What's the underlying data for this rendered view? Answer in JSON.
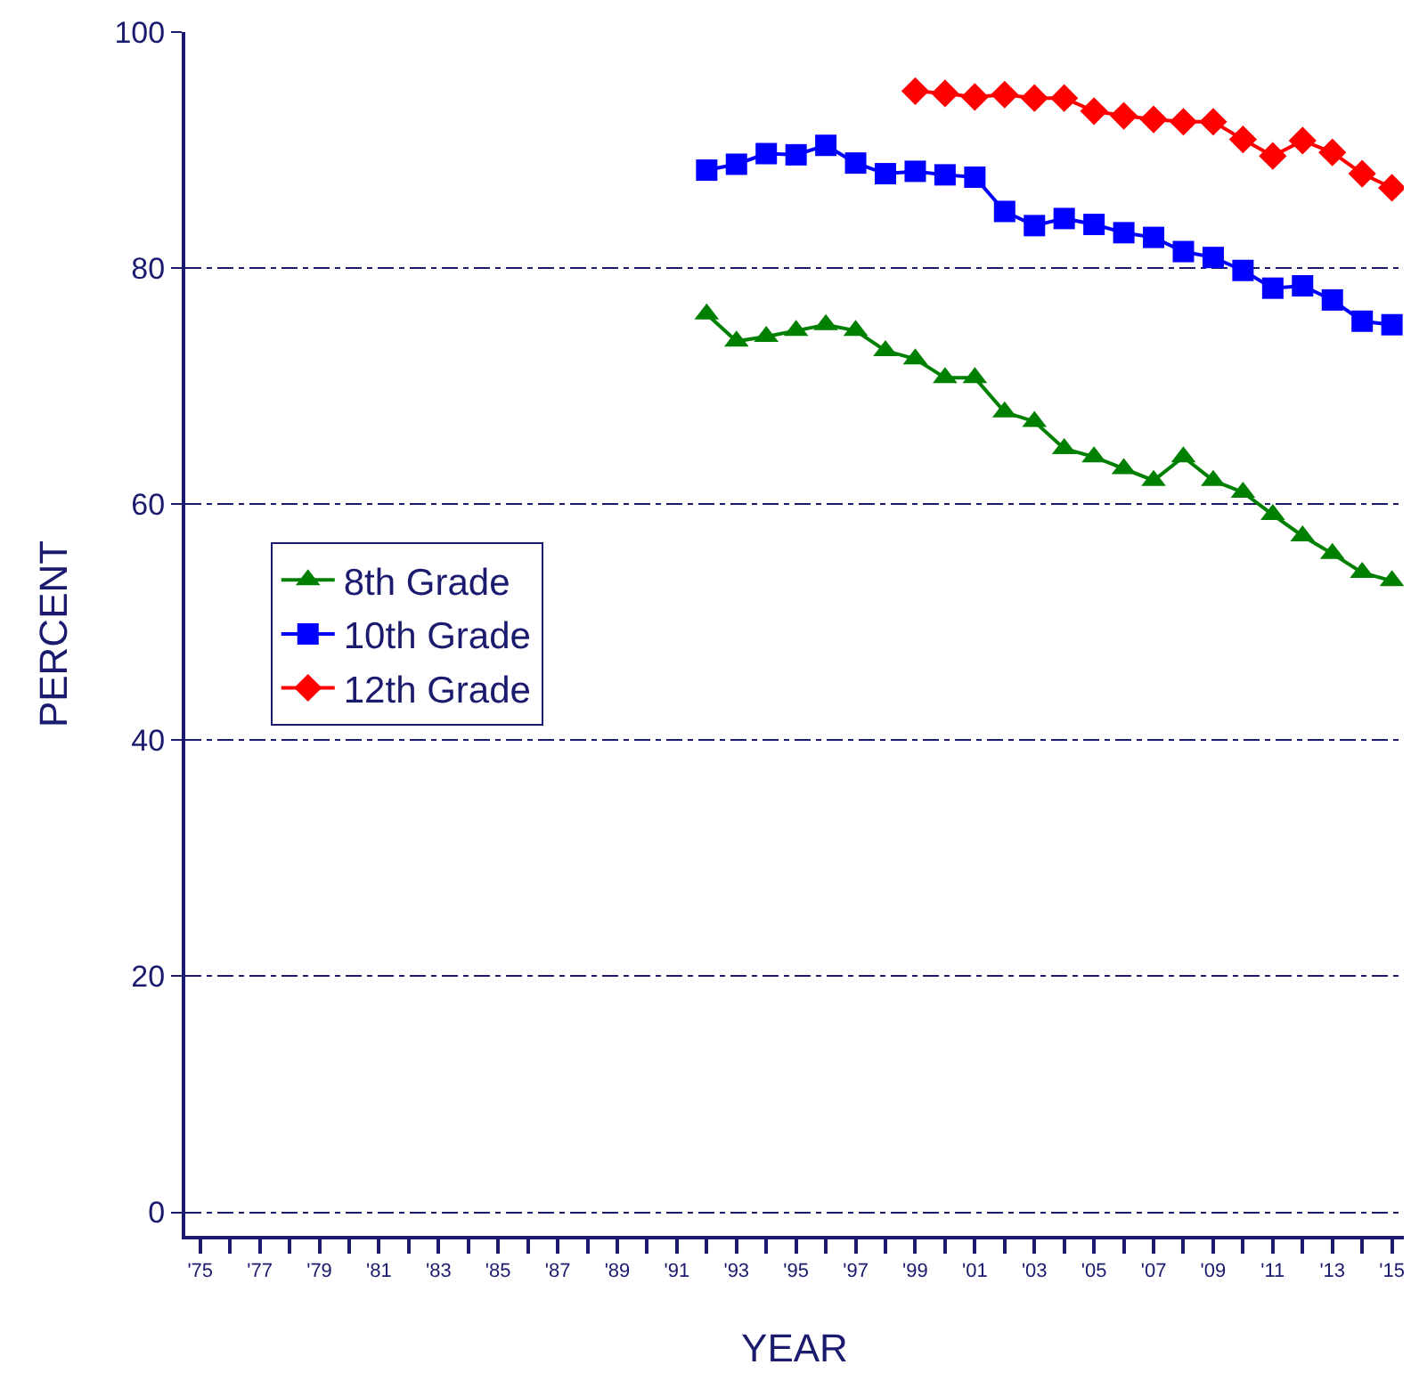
{
  "chart_data": {
    "type": "line",
    "xlabel": "YEAR",
    "ylabel": "PERCENT",
    "xlim": [
      1974.5,
      2015.4
    ],
    "ylim": [
      -2,
      100
    ],
    "xticks": [
      {
        "value": 1975,
        "label": "'75"
      },
      {
        "value": 1976,
        "label": null
      },
      {
        "value": 1977,
        "label": "'77"
      },
      {
        "value": 1978,
        "label": null
      },
      {
        "value": 1979,
        "label": "'79"
      },
      {
        "value": 1980,
        "label": null
      },
      {
        "value": 1981,
        "label": "'81"
      },
      {
        "value": 1982,
        "label": null
      },
      {
        "value": 1983,
        "label": "'83"
      },
      {
        "value": 1984,
        "label": null
      },
      {
        "value": 1985,
        "label": "'85"
      },
      {
        "value": 1986,
        "label": null
      },
      {
        "value": 1987,
        "label": "'87"
      },
      {
        "value": 1988,
        "label": null
      },
      {
        "value": 1989,
        "label": "'89"
      },
      {
        "value": 1990,
        "label": null
      },
      {
        "value": 1991,
        "label": "'91"
      },
      {
        "value": 1992,
        "label": null
      },
      {
        "value": 1993,
        "label": "'93"
      },
      {
        "value": 1994,
        "label": null
      },
      {
        "value": 1995,
        "label": "'95"
      },
      {
        "value": 1996,
        "label": null
      },
      {
        "value": 1997,
        "label": "'97"
      },
      {
        "value": 1998,
        "label": null
      },
      {
        "value": 1999,
        "label": "'99"
      },
      {
        "value": 2000,
        "label": null
      },
      {
        "value": 2001,
        "label": "'01"
      },
      {
        "value": 2002,
        "label": null
      },
      {
        "value": 2003,
        "label": "'03"
      },
      {
        "value": 2004,
        "label": null
      },
      {
        "value": 2005,
        "label": "'05"
      },
      {
        "value": 2006,
        "label": null
      },
      {
        "value": 2007,
        "label": "'07"
      },
      {
        "value": 2008,
        "label": null
      },
      {
        "value": 2009,
        "label": "'09"
      },
      {
        "value": 2010,
        "label": null
      },
      {
        "value": 2011,
        "label": "'11"
      },
      {
        "value": 2012,
        "label": null
      },
      {
        "value": 2013,
        "label": "'13"
      },
      {
        "value": 2014,
        "label": null
      },
      {
        "value": 2015,
        "label": "'15"
      }
    ],
    "yticks": [
      0,
      20,
      40,
      60,
      80,
      100
    ],
    "grid": "y",
    "legend": "left",
    "line_style": "solid",
    "series": [
      {
        "name": "8th Grade",
        "color": "#008000",
        "marker": "triangle",
        "x": [
          1992,
          1993,
          1994,
          1995,
          1996,
          1997,
          1998,
          1999,
          2000,
          2001,
          2002,
          2003,
          2004,
          2005,
          2006,
          2007,
          2008,
          2009,
          2010,
          2011,
          2012,
          2013,
          2014,
          2015
        ],
        "values": [
          76.1,
          73.8,
          74.2,
          74.7,
          75.2,
          74.7,
          73,
          72.3,
          70.7,
          70.7,
          67.8,
          67,
          64.7,
          64,
          63,
          62,
          64,
          62,
          61,
          59.1,
          57.3,
          55.8,
          54.2,
          53.5
        ]
      },
      {
        "name": "10th Grade",
        "color": "#0000ff",
        "marker": "square",
        "x": [
          1992,
          1993,
          1994,
          1995,
          1996,
          1997,
          1998,
          1999,
          2000,
          2001,
          2002,
          2003,
          2004,
          2005,
          2006,
          2007,
          2008,
          2009,
          2010,
          2011,
          2012,
          2013,
          2014,
          2015
        ],
        "values": [
          88.3,
          88.8,
          89.7,
          89.6,
          90.4,
          88.9,
          88,
          88.2,
          87.9,
          87.7,
          84.8,
          83.6,
          84.2,
          83.7,
          83,
          82.6,
          81.4,
          80.9,
          79.8,
          78.3,
          78.5,
          77.3,
          75.5,
          75.2
        ]
      },
      {
        "name": "12th Grade",
        "color": "#ff0000",
        "marker": "diamond",
        "x": [
          1999,
          2000,
          2001,
          2002,
          2003,
          2004,
          2005,
          2006,
          2007,
          2008,
          2009,
          2010,
          2011,
          2012,
          2013,
          2014,
          2015
        ],
        "values": [
          95,
          94.8,
          94.5,
          94.7,
          94.4,
          94.4,
          93.3,
          92.9,
          92.6,
          92.4,
          92.4,
          90.9,
          89.5,
          90.8,
          89.8,
          88,
          86.8
        ]
      }
    ]
  }
}
